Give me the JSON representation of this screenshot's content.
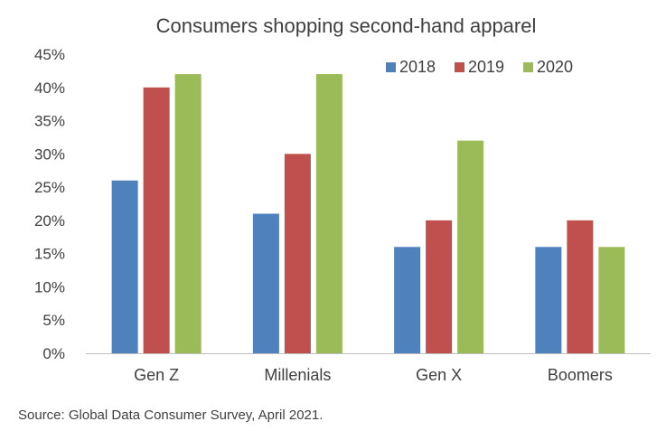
{
  "chart_data": {
    "type": "bar",
    "title": "Consumers shopping second-hand apparel",
    "categories": [
      "Gen Z",
      "Millenials",
      "Gen X",
      "Boomers"
    ],
    "series": [
      {
        "name": "2018",
        "color": "#4F81BD",
        "values": [
          26,
          21,
          16,
          16
        ]
      },
      {
        "name": "2019",
        "color": "#C0504D",
        "values": [
          40,
          30,
          20,
          20
        ]
      },
      {
        "name": "2020",
        "color": "#9BBB59",
        "values": [
          42,
          42,
          32,
          16
        ]
      }
    ],
    "xlabel": "",
    "ylabel": "",
    "ylim": [
      0,
      45
    ],
    "ytick_step": 5,
    "ytick_suffix": "%",
    "grid": false,
    "legend_position": "top-right"
  },
  "source": "Source: Global Data Consumer Survey, April 2021."
}
